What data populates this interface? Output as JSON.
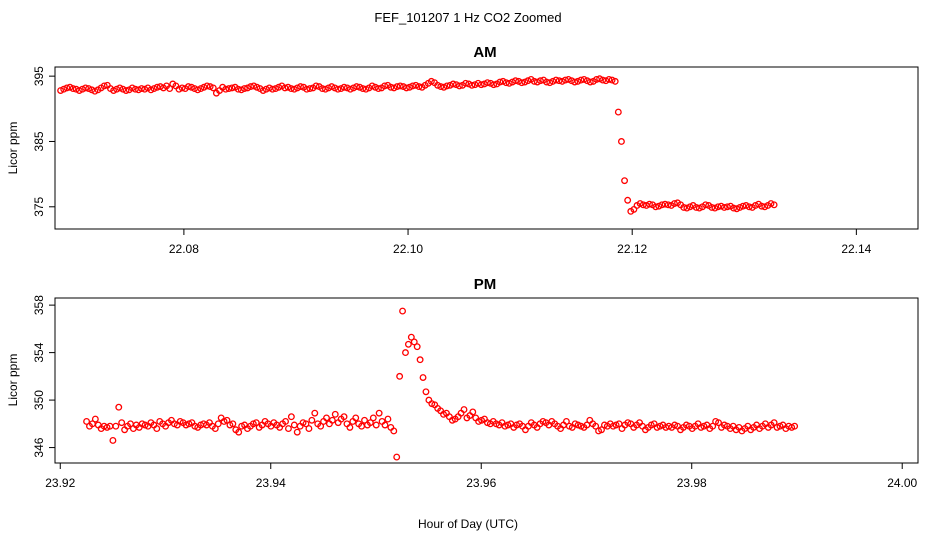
{
  "figure": {
    "title": "FEF_101207  1 Hz CO2 Zoomed",
    "xlabel": "Hour of Day (UTC)"
  },
  "colors": {
    "points": "#ff0000",
    "axes": "#000000",
    "background": "#ffffff"
  },
  "chart_data": [
    {
      "type": "scatter",
      "title": "AM",
      "ylabel": "Licor ppm",
      "xlim": [
        22.0685,
        22.1455
      ],
      "ylim": [
        371.6,
        396.4
      ],
      "x_ticks": [
        22.08,
        22.1,
        22.12,
        22.14
      ],
      "x_tick_labels": [
        "22.08",
        "22.10",
        "22.12",
        "22.14"
      ],
      "y_ticks": [
        375,
        385,
        395
      ],
      "y_tick_labels": [
        "375",
        "385",
        "395"
      ],
      "grid": false,
      "series": [
        {
          "x_start": 22.069,
          "x_step": 0.000278,
          "values": [
            392.8,
            393.0,
            393.2,
            393.3,
            393.1,
            393.0,
            392.8,
            393.0,
            393.2,
            393.1,
            392.9,
            392.7,
            392.9,
            393.2,
            393.5,
            393.6,
            393.1,
            392.8,
            393.0,
            393.2,
            393.0,
            392.8,
            392.9,
            393.2,
            393.0,
            392.9,
            393.1,
            393.0,
            393.2,
            392.9,
            393.1,
            393.3,
            393.4,
            393.2,
            393.5,
            393.1,
            393.8,
            393.5,
            393.0,
            393.2,
            393.1,
            393.4,
            393.3,
            393.1,
            392.9,
            393.1,
            393.3,
            393.5,
            393.4,
            393.2,
            392.4,
            392.8,
            393.3,
            393.0,
            393.1,
            393.2,
            393.3,
            393.0,
            392.9,
            393.1,
            393.2,
            393.4,
            393.5,
            393.3,
            393.1,
            392.8,
            393.0,
            393.2,
            393.0,
            393.1,
            393.3,
            393.5,
            393.2,
            393.3,
            393.1,
            393.0,
            393.2,
            393.4,
            393.3,
            393.0,
            393.1,
            393.2,
            393.5,
            393.4,
            393.1,
            393.0,
            393.2,
            393.4,
            393.2,
            393.0,
            393.1,
            393.3,
            393.2,
            393.0,
            393.2,
            393.4,
            393.3,
            393.1,
            393.0,
            393.2,
            393.5,
            393.3,
            393.1,
            393.2,
            393.5,
            393.6,
            393.3,
            393.2,
            393.4,
            393.5,
            393.4,
            393.2,
            393.3,
            393.5,
            393.6,
            393.4,
            393.3,
            393.6,
            393.9,
            394.2,
            394.0,
            393.6,
            393.4,
            393.3,
            393.5,
            393.6,
            393.8,
            393.7,
            393.5,
            393.6,
            393.9,
            393.8,
            393.6,
            393.7,
            393.9,
            393.7,
            393.8,
            394.0,
            393.9,
            393.7,
            393.8,
            394.1,
            394.2,
            394.0,
            393.9,
            394.1,
            394.3,
            394.2,
            394.0,
            394.1,
            394.3,
            394.5,
            394.2,
            394.1,
            394.3,
            394.4,
            394.1,
            394.0,
            394.2,
            394.4,
            394.3,
            394.2,
            394.4,
            394.5,
            394.3,
            394.1,
            394.2,
            394.4,
            394.5,
            394.3,
            394.1,
            394.2,
            394.5,
            394.6,
            394.4,
            394.3,
            394.5,
            394.4,
            394.2,
            389.5,
            385.0,
            379.0,
            376.0,
            374.3,
            374.6,
            375.2,
            375.5,
            375.3,
            375.2,
            375.4,
            375.3,
            375.0,
            375.1,
            375.3,
            375.4,
            375.3,
            375.2,
            375.5,
            375.6,
            375.3,
            374.9,
            374.8,
            375.0,
            375.2,
            374.9,
            374.8,
            375.0,
            375.3,
            375.2,
            374.9,
            374.8,
            375.0,
            375.1,
            374.9,
            375.0,
            375.1,
            374.8,
            374.7,
            374.9,
            375.1,
            375.2,
            375.0,
            374.9,
            375.2,
            375.4,
            375.1,
            375.0,
            375.2,
            375.5,
            375.3
          ]
        }
      ]
    },
    {
      "type": "scatter",
      "title": "PM",
      "ylabel": "Licor ppm",
      "xlim": [
        23.9195,
        24.0015
      ],
      "ylim": [
        344.7,
        358.6
      ],
      "x_ticks": [
        23.92,
        23.94,
        23.96,
        23.98,
        24.0
      ],
      "x_tick_labels": [
        "23.92",
        "23.94",
        "23.96",
        "23.98",
        "24.00"
      ],
      "y_ticks": [
        346,
        350,
        354,
        358
      ],
      "y_tick_labels": [
        "346",
        "350",
        "354",
        "358"
      ],
      "grid": false,
      "series": [
        {
          "x_start": 23.9225,
          "x_step": 0.000278,
          "values": [
            348.2,
            347.8,
            348.0,
            348.4,
            347.9,
            347.6,
            347.8,
            347.7,
            347.8,
            346.6,
            347.8,
            349.4,
            348.1,
            347.5,
            347.8,
            348.0,
            347.6,
            347.9,
            347.7,
            348.0,
            347.9,
            347.8,
            348.1,
            347.9,
            347.6,
            348.2,
            348.0,
            347.8,
            348.1,
            348.3,
            348.0,
            347.9,
            348.2,
            348.1,
            347.9,
            348.0,
            348.1,
            347.8,
            347.7,
            347.9,
            348.0,
            347.9,
            348.1,
            347.8,
            347.6,
            348.0,
            348.5,
            348.2,
            348.3,
            347.9,
            348.0,
            347.5,
            347.3,
            347.8,
            347.9,
            347.6,
            347.8,
            348.0,
            348.1,
            347.7,
            347.9,
            348.2,
            348.0,
            347.8,
            348.1,
            347.9,
            347.7,
            348.0,
            348.2,
            347.6,
            348.6,
            347.9,
            347.3,
            347.8,
            348.1,
            348.0,
            347.6,
            348.3,
            348.9,
            348.0,
            347.8,
            348.2,
            348.5,
            348.0,
            348.3,
            348.8,
            348.1,
            348.4,
            348.6,
            348.0,
            347.7,
            348.2,
            348.5,
            348.0,
            347.8,
            348.3,
            347.9,
            348.1,
            348.5,
            347.9,
            348.9,
            348.2,
            347.9,
            348.4,
            347.7,
            347.4,
            345.2,
            352.0,
            357.5,
            354.0,
            354.7,
            355.3,
            354.9,
            354.5,
            353.4,
            351.9,
            350.7,
            350.0,
            349.7,
            349.6,
            349.3,
            349.1,
            348.8,
            348.9,
            348.6,
            348.3,
            348.4,
            348.6,
            348.9,
            349.2,
            348.5,
            348.7,
            349.0,
            348.5,
            348.2,
            348.3,
            348.4,
            348.1,
            348.0,
            348.2,
            348.0,
            347.9,
            348.1,
            347.8,
            347.9,
            348.0,
            347.7,
            347.9,
            348.0,
            347.8,
            347.5,
            347.8,
            348.1,
            347.9,
            347.7,
            348.0,
            348.2,
            348.1,
            347.9,
            348.2,
            348.0,
            347.8,
            347.6,
            347.9,
            348.2,
            347.8,
            347.7,
            348.0,
            347.9,
            347.8,
            347.7,
            347.9,
            348.3,
            348.0,
            347.8,
            347.4,
            347.5,
            347.9,
            347.8,
            348.0,
            347.8,
            347.9,
            348.0,
            347.6,
            347.9,
            348.1,
            348.0,
            347.7,
            347.9,
            348.1,
            347.8,
            347.5,
            347.7,
            347.9,
            348.0,
            347.7,
            347.8,
            347.9,
            347.7,
            347.8,
            347.7,
            347.9,
            347.8,
            347.5,
            347.7,
            347.9,
            347.8,
            347.6,
            347.8,
            348.0,
            347.7,
            347.8,
            347.9,
            347.6,
            347.8,
            348.2,
            348.1,
            347.7,
            347.9,
            347.8,
            347.6,
            347.8,
            347.5,
            347.7,
            347.4,
            347.6,
            347.8,
            347.5,
            347.7,
            347.9,
            347.6,
            347.8,
            348.0,
            347.7,
            347.9,
            348.1,
            347.7,
            347.8,
            347.9,
            347.6,
            347.8,
            347.7,
            347.8
          ]
        }
      ]
    }
  ]
}
